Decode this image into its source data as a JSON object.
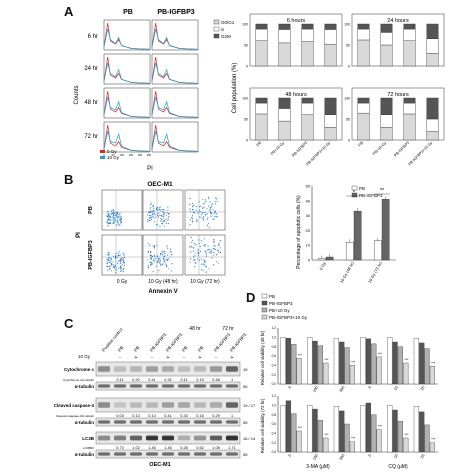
{
  "panel_letters": {
    "A": "A",
    "B": "B",
    "C": "C",
    "D": "D"
  },
  "panel_a": {
    "col_headers": [
      "PB",
      "PB-IGFBP3"
    ],
    "row_labels": [
      "6 hr",
      "24 hr",
      "48 hr",
      "72 hr"
    ],
    "y_axis_label": "Counts",
    "x_axis_label": "PI",
    "legend": [
      "0 Gy",
      "10 Gy"
    ],
    "legend_colors": [
      "#d62728",
      "#1f9fd6"
    ],
    "x_ticks": [
      "0",
      "50",
      "100",
      "150",
      "200",
      "250"
    ]
  },
  "panel_a_bars": {
    "y_axis_label": "Cell population (%)",
    "legend": [
      "G0/G1",
      "S",
      "G2M"
    ],
    "legend_colors": [
      "#d9d9d9",
      "#ffffff",
      "#555555"
    ],
    "categories": [
      "PB",
      "PB+10 Gy",
      "PB-IGFBP3",
      "PB-IGFBP3+10 Gy"
    ],
    "y_ticks": [
      "0",
      "50",
      "100"
    ],
    "subplots": [
      {
        "title": "6 hours",
        "g1": [
          60,
          55,
          58,
          52
        ],
        "s": [
          28,
          32,
          30,
          35
        ],
        "g2m": [
          12,
          13,
          12,
          13
        ]
      },
      {
        "title": "24 hours",
        "g1": [
          62,
          50,
          60,
          30
        ],
        "s": [
          26,
          30,
          28,
          35
        ],
        "g2m": [
          12,
          20,
          12,
          35
        ]
      },
      {
        "title": "48 hours",
        "g1": [
          62,
          45,
          60,
          30
        ],
        "s": [
          26,
          30,
          28,
          30
        ],
        "g2m": [
          12,
          25,
          12,
          40
        ]
      },
      {
        "title": "72 hours",
        "g1": [
          64,
          30,
          62,
          20
        ],
        "s": [
          24,
          30,
          26,
          30
        ],
        "g2m": [
          12,
          40,
          12,
          50
        ]
      }
    ]
  },
  "panel_b": {
    "title": "OEC-M1",
    "row_labels": [
      "PB",
      "PB-IGFBP3"
    ],
    "col_labels": [
      "0 Gy",
      "10 Gy (48 hr)",
      "10 Gy (72 hr)"
    ],
    "x_axis_label": "Annexin V",
    "y_axis_label": "PI"
  },
  "panel_b_bars": {
    "y_axis_label": "Percentage of apoptotic cells (%)",
    "legend": [
      "PB",
      "PB-IGFBP3"
    ],
    "legend_colors": [
      "#ffffff",
      "#666666"
    ],
    "categories": [
      "0 Gy",
      "10 Gy (48 hr)",
      "10 Gy (72 hr)"
    ],
    "series": [
      {
        "name": "PB",
        "values": [
          1,
          12,
          13
        ]
      },
      {
        "name": "PB-IGFBP3",
        "values": [
          2,
          33,
          41
        ]
      }
    ],
    "y_ticks": [
      "0",
      "10",
      "20",
      "30",
      "40",
      "50"
    ],
    "ylim": [
      0,
      50
    ],
    "significance": [
      "*",
      "**"
    ]
  },
  "panel_c": {
    "time_labels": [
      "48 hr",
      "72 hr"
    ],
    "dose_label": "10 Gy",
    "lane_labels": [
      "Positive control",
      "PB",
      "PB",
      "PB-IGFBP3",
      "PB-IGFBP3",
      "PB",
      "PB",
      "PB-IGFBP3",
      "PB-IGFBP3"
    ],
    "dose_marks": [
      "",
      "-",
      "+",
      "-",
      "+",
      "-",
      "+",
      "-",
      "+"
    ],
    "rows": [
      {
        "label": "Cytochrome c",
        "kda": "15",
        "sub": "Cytochrome c/α-tubulin",
        "values": [
          "",
          "0.11",
          "0.20",
          "0.41",
          "0.32",
          "0.11",
          "0.15",
          "0.48",
          "1"
        ]
      },
      {
        "label": "α-tubulin",
        "kda": "55",
        "sub": "",
        "values": []
      },
      {
        "label": "Cleaved caspase-3",
        "kda": "19 / 17",
        "sub": "Cleaved caspase-3/α-tubulin",
        "values": [
          "",
          "0.03",
          "0.13",
          "0.14",
          "0.41",
          "0.33",
          "0.16",
          "0.29",
          "1"
        ]
      },
      {
        "label": "α-tubulin",
        "kda": "55",
        "sub": "",
        "values": []
      },
      {
        "label": "LC3B",
        "kda": "16 / 14",
        "sub": "LC3BII/I",
        "values": [
          "",
          "0.73",
          "1.02",
          "1.45",
          "1.45",
          "0.28",
          "0.52",
          "1.08",
          "1.71"
        ]
      },
      {
        "label": "α-tubulin",
        "kda": "55",
        "sub": "",
        "values": []
      }
    ],
    "cell_line": "OEC-M1"
  },
  "panel_d": {
    "legend": [
      "PB",
      "PB-IGFBP3",
      "PB+10 Gy",
      "PB-IGFBP3+10 Gy"
    ],
    "legend_colors": [
      "#ffffff",
      "#555555",
      "#b0b0b0",
      "#d9d9d9"
    ],
    "top_y_label": "Relative cell viability (48 hr)",
    "bottom_y_label": "Relative cell viability (72 hr)",
    "y_ticks": [
      "0.0",
      "0.2",
      "0.4",
      "0.6",
      "0.8",
      "1.0",
      "1.2"
    ],
    "x_groups_left": [
      "0",
      "100",
      "300"
    ],
    "x_groups_right": [
      "0",
      "10",
      "25"
    ],
    "x_label_left": "3-MA (μM)",
    "x_label_right": "CQ (μM)",
    "top_values": [
      [
        1.0,
        0.98,
        0.85,
        0.55
      ],
      [
        1.0,
        0.92,
        0.82,
        0.45
      ],
      [
        0.98,
        0.9,
        0.78,
        0.4
      ],
      [
        1.0,
        0.97,
        0.86,
        0.58
      ],
      [
        1.0,
        0.9,
        0.8,
        0.45
      ],
      [
        0.98,
        0.88,
        0.76,
        0.38
      ]
    ],
    "bottom_values": [
      [
        1.0,
        1.1,
        0.82,
        0.45
      ],
      [
        1.0,
        0.92,
        0.68,
        0.3
      ],
      [
        0.98,
        0.88,
        0.6,
        0.22
      ],
      [
        1.0,
        1.05,
        0.8,
        0.48
      ],
      [
        1.0,
        0.9,
        0.66,
        0.3
      ],
      [
        0.98,
        0.86,
        0.58,
        0.2
      ]
    ],
    "top_sig": [
      "***",
      "***",
      "***",
      "***",
      "***",
      "***"
    ],
    "bottom_sig": [
      "***",
      "***",
      "***",
      "***",
      "***",
      "***"
    ]
  }
}
